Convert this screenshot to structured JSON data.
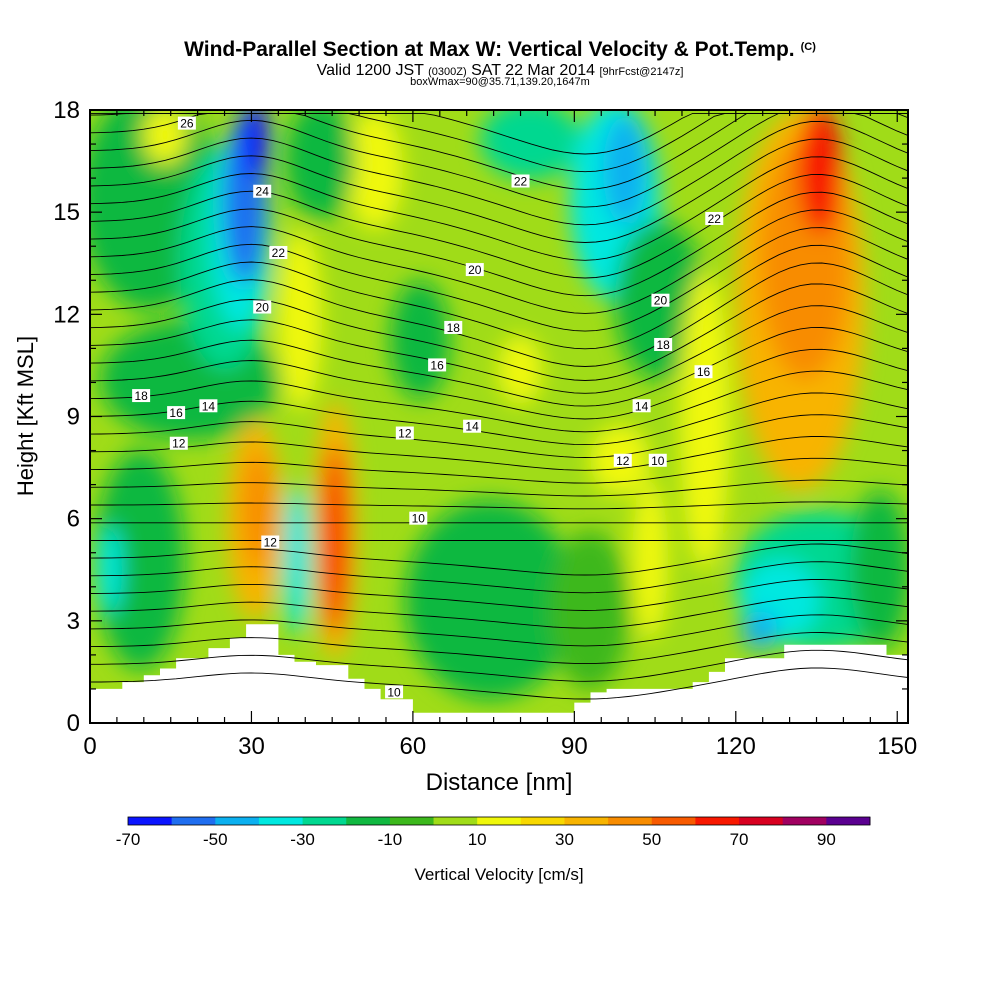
{
  "title": {
    "main": "Wind-Parallel Section at Max W: Vertical Velocity & Pot.Temp.",
    "copyright": "(C)",
    "valid_prefix": "Valid 1200 JST",
    "utc": "(0300Z)",
    "valid_date": "SAT 22 Mar 2014",
    "forecast": "[9hrFcst@2147z]",
    "box": "boxWmax=90@35.71,139.20,1647m"
  },
  "chart_data": {
    "type": "heatmap",
    "xlabel": "Distance [nm]",
    "ylabel": "Height [Kft MSL]",
    "xlim": [
      0,
      152
    ],
    "ylim": [
      0,
      18
    ],
    "xticks": [
      0,
      30,
      60,
      90,
      120,
      150
    ],
    "yticks": [
      0,
      3,
      6,
      9,
      12,
      15,
      18
    ],
    "colorbar": {
      "label": "Vertical Velocity [cm/s]",
      "levels": [
        -70,
        -60,
        -50,
        -40,
        -30,
        -20,
        -10,
        0,
        10,
        20,
        30,
        40,
        50,
        60,
        70,
        80,
        90,
        100
      ],
      "tick_labels": [
        "-70",
        "-50",
        "-30",
        "-10",
        "10",
        "30",
        "50",
        "70",
        "90"
      ],
      "tick_values": [
        -70,
        -50,
        -30,
        -10,
        10,
        30,
        50,
        70,
        90
      ],
      "colors": [
        "#0a14ff",
        "#1f6ef0",
        "#0bb0f0",
        "#00e8e0",
        "#00d890",
        "#10b840",
        "#3cb81c",
        "#a0dc18",
        "#f0f80a",
        "#f8d800",
        "#f8b400",
        "#f88c00",
        "#f85a00",
        "#f81800",
        "#d80020",
        "#a00060",
        "#5a0090"
      ]
    },
    "contour_field": "Potential temperature (C)",
    "contour_labels": [
      {
        "text": "26",
        "x": 18,
        "y": 17.6
      },
      {
        "text": "24",
        "x": 32,
        "y": 15.6
      },
      {
        "text": "22",
        "x": 35,
        "y": 13.8
      },
      {
        "text": "20",
        "x": 32,
        "y": 12.2
      },
      {
        "text": "18",
        "x": 9.5,
        "y": 9.6
      },
      {
        "text": "16",
        "x": 16,
        "y": 9.1
      },
      {
        "text": "14",
        "x": 22,
        "y": 9.3
      },
      {
        "text": "12",
        "x": 16.5,
        "y": 8.2
      },
      {
        "text": "12",
        "x": 33.5,
        "y": 5.3
      },
      {
        "text": "12",
        "x": 58.5,
        "y": 8.5
      },
      {
        "text": "10",
        "x": 61,
        "y": 6
      },
      {
        "text": "10",
        "x": 56.5,
        "y": 0.9
      },
      {
        "text": "16",
        "x": 64.5,
        "y": 10.5
      },
      {
        "text": "18",
        "x": 67.5,
        "y": 11.6
      },
      {
        "text": "20",
        "x": 71.5,
        "y": 13.3
      },
      {
        "text": "14",
        "x": 71,
        "y": 8.7
      },
      {
        "text": "22",
        "x": 80,
        "y": 15.9
      },
      {
        "text": "12",
        "x": 99,
        "y": 7.7
      },
      {
        "text": "10",
        "x": 105.5,
        "y": 7.7
      },
      {
        "text": "14",
        "x": 102.5,
        "y": 9.3
      },
      {
        "text": "20",
        "x": 106,
        "y": 12.4
      },
      {
        "text": "18",
        "x": 106.5,
        "y": 11.1
      },
      {
        "text": "16",
        "x": 114,
        "y": 10.3
      },
      {
        "text": "22",
        "x": 116,
        "y": 14.8
      }
    ],
    "terrain": [
      [
        0,
        1
      ],
      [
        6,
        1
      ],
      [
        6,
        1.2
      ],
      [
        10,
        1.2
      ],
      [
        10,
        1.4
      ],
      [
        13,
        1.4
      ],
      [
        13,
        1.6
      ],
      [
        16,
        1.6
      ],
      [
        16,
        1.9
      ],
      [
        22,
        1.9
      ],
      [
        22,
        2.2
      ],
      [
        26,
        2.2
      ],
      [
        26,
        2.5
      ],
      [
        29,
        2.5
      ],
      [
        29,
        2.9
      ],
      [
        35,
        2.9
      ],
      [
        35,
        2
      ],
      [
        38,
        2
      ],
      [
        38,
        1.8
      ],
      [
        42,
        1.8
      ],
      [
        42,
        1.7
      ],
      [
        48,
        1.7
      ],
      [
        48,
        1.3
      ],
      [
        51,
        1.3
      ],
      [
        51,
        1
      ],
      [
        54,
        1
      ],
      [
        54,
        0.7
      ],
      [
        60,
        0.7
      ],
      [
        60,
        0.3
      ],
      [
        90,
        0.3
      ],
      [
        90,
        0.6
      ],
      [
        93,
        0.6
      ],
      [
        93,
        0.9
      ],
      [
        96,
        0.9
      ],
      [
        96,
        1
      ],
      [
        112,
        1
      ],
      [
        112,
        1.2
      ],
      [
        115,
        1.2
      ],
      [
        115,
        1.5
      ],
      [
        118,
        1.5
      ],
      [
        118,
        1.9
      ],
      [
        129,
        1.9
      ],
      [
        129,
        2.3
      ],
      [
        148,
        2.3
      ],
      [
        148,
        2
      ],
      [
        152,
        2
      ]
    ]
  }
}
